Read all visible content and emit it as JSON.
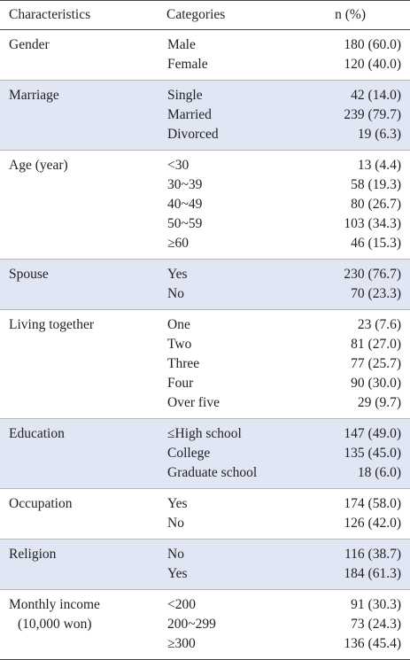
{
  "table": {
    "header": [
      "Characteristics",
      "Categories",
      "n (%)"
    ],
    "groups": [
      {
        "label": "Gender",
        "rows": [
          [
            "Male",
            "180 (60.0)"
          ],
          [
            "Female",
            "120 (40.0)"
          ]
        ]
      },
      {
        "label": "Marriage",
        "rows": [
          [
            "Single",
            "42 (14.0)"
          ],
          [
            "Married",
            "239 (79.7)"
          ],
          [
            "Divorced",
            "19 (6.3)"
          ]
        ]
      },
      {
        "label": "Age (year)",
        "rows": [
          [
            "<30",
            "13 (4.4)"
          ],
          [
            "30~39",
            "58 (19.3)"
          ],
          [
            "40~49",
            "80 (26.7)"
          ],
          [
            "50~59",
            "103 (34.3)"
          ],
          [
            "≥60",
            "46 (15.3)"
          ]
        ]
      },
      {
        "label": "Spouse",
        "rows": [
          [
            "Yes",
            "230 (76.7)"
          ],
          [
            "No",
            "70 (23.3)"
          ]
        ]
      },
      {
        "label": "Living together",
        "rows": [
          [
            "One",
            "23 (7.6)"
          ],
          [
            "Two",
            "81 (27.0)"
          ],
          [
            "Three",
            "77 (25.7)"
          ],
          [
            "Four",
            "90 (30.0)"
          ],
          [
            "Over five",
            "29 (9.7)"
          ]
        ]
      },
      {
        "label": "Education",
        "rows": [
          [
            "≤High school",
            "147 (49.0)"
          ],
          [
            "College",
            "135 (45.0)"
          ],
          [
            "Graduate school",
            "18 (6.0)"
          ]
        ]
      },
      {
        "label": "Occupation",
        "rows": [
          [
            "Yes",
            "174 (58.0)"
          ],
          [
            "No",
            "126 (42.0)"
          ]
        ]
      },
      {
        "label": "Religion",
        "rows": [
          [
            "No",
            "116 (38.7)"
          ],
          [
            "Yes",
            "184 (61.3)"
          ]
        ]
      },
      {
        "label": "Monthly income",
        "sublabel": "(10,000 won)",
        "rows": [
          [
            "<200",
            "91 (30.3)"
          ],
          [
            "200~299",
            "73 (24.3)"
          ],
          [
            "≥300",
            "136 (45.4)"
          ]
        ]
      }
    ]
  }
}
